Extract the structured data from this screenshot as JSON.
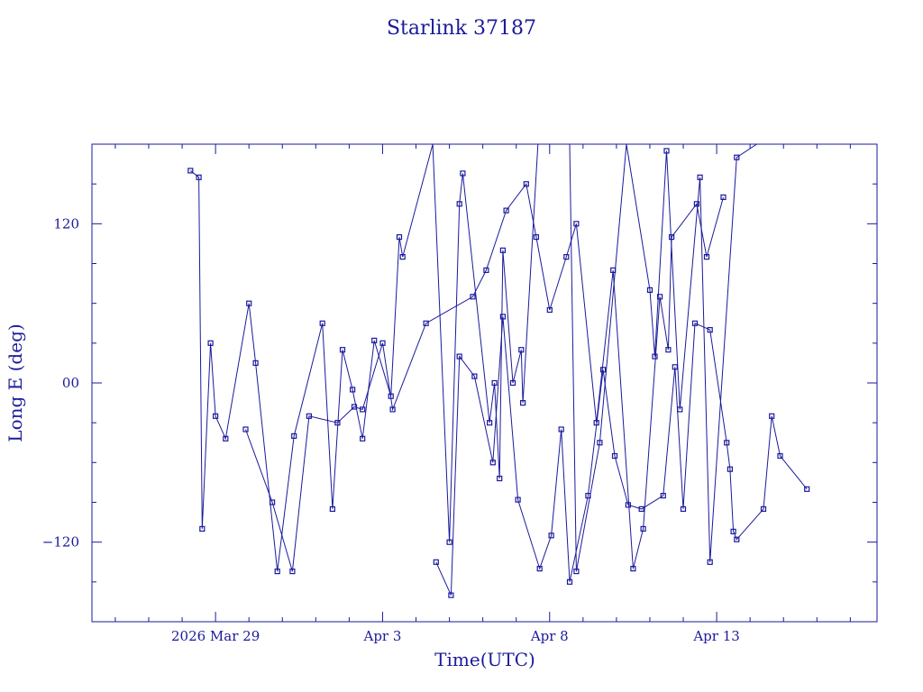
{
  "chart_data": {
    "type": "line",
    "title": "Starlink 37187",
    "xlabel": "Time(UTC)",
    "ylabel": "Long E (deg)",
    "color": "#1a1a9c",
    "x_unit": "days",
    "x_ticks": [
      {
        "label": "2026 Mar 29",
        "value": 3.7
      },
      {
        "label": "Apr  3",
        "value": 8.7
      },
      {
        "label": "Apr  8",
        "value": 13.7
      },
      {
        "label": "Apr 13",
        "value": 18.7
      }
    ],
    "xlim": [
      0,
      23.5
    ],
    "ylim": [
      -180,
      180
    ],
    "y_ticks": [
      -120,
      0,
      120
    ],
    "y_tick_labels": [
      "−120",
      "00",
      "120"
    ],
    "grid": false,
    "series": [
      {
        "x": [
          2.95,
          3.2,
          3.3,
          3.55,
          3.7,
          4.0,
          4.7,
          4.9,
          5.55,
          6.05,
          6.9,
          7.2,
          7.5,
          7.8,
          8.1,
          8.45,
          8.95,
          9.2,
          9.3,
          10.2,
          10.7,
          11.0,
          11.1,
          11.9,
          12.05,
          12.2,
          12.3,
          12.6,
          12.85,
          12.9,
          13.35,
          14.3,
          14.5,
          15.2,
          16.0,
          16.7,
          16.85,
          17.2,
          17.6,
          18.2,
          18.5,
          19.3,
          19.9
        ],
        "y": [
          160,
          155,
          -110,
          30,
          -25,
          -42,
          60,
          15,
          -142,
          -40,
          45,
          -95,
          25,
          -5,
          -42,
          32,
          -10,
          110,
          95,
          180,
          -120,
          135,
          158,
          -30,
          0,
          -72,
          100,
          0,
          25,
          -15,
          180,
          180,
          -142,
          -45,
          180,
          70,
          20,
          175,
          -20,
          155,
          -135,
          170,
          180
        ]
      },
      {
        "x": [
          4.6,
          5.4,
          6.0,
          6.5,
          7.35,
          7.85,
          8.1,
          8.7,
          9.0,
          10.0,
          11.4,
          11.8,
          12.4,
          13.0,
          13.3,
          13.7,
          14.2,
          14.5,
          15.1,
          15.6,
          16.2,
          16.5,
          17.0,
          17.25,
          17.35,
          18.1,
          18.4,
          18.9
        ],
        "y": [
          -35,
          -90,
          -142,
          -25,
          -30,
          -18,
          -20,
          30,
          -20,
          45,
          65,
          85,
          130,
          150,
          110,
          55,
          95,
          120,
          -30,
          85,
          -140,
          -110,
          65,
          25,
          110,
          135,
          95,
          140
        ]
      },
      {
        "x": [
          10.3,
          10.75,
          11.0,
          11.45,
          12.0,
          12.3,
          12.75,
          13.4,
          13.75,
          14.05,
          14.3,
          14.85,
          15.3,
          15.65,
          16.05,
          16.45,
          17.1,
          17.45,
          17.7,
          18.05,
          18.5,
          19.0,
          19.1,
          19.2,
          19.3,
          20.1,
          20.35,
          20.6,
          21.4
        ],
        "y": [
          -135,
          -160,
          20,
          5,
          -60,
          50,
          -88,
          -140,
          -115,
          -35,
          -150,
          -85,
          10,
          -55,
          -92,
          -95,
          -85,
          12,
          -95,
          45,
          40,
          -45,
          -65,
          -112,
          -118,
          -95,
          -25,
          -55,
          -80
        ]
      }
    ]
  }
}
